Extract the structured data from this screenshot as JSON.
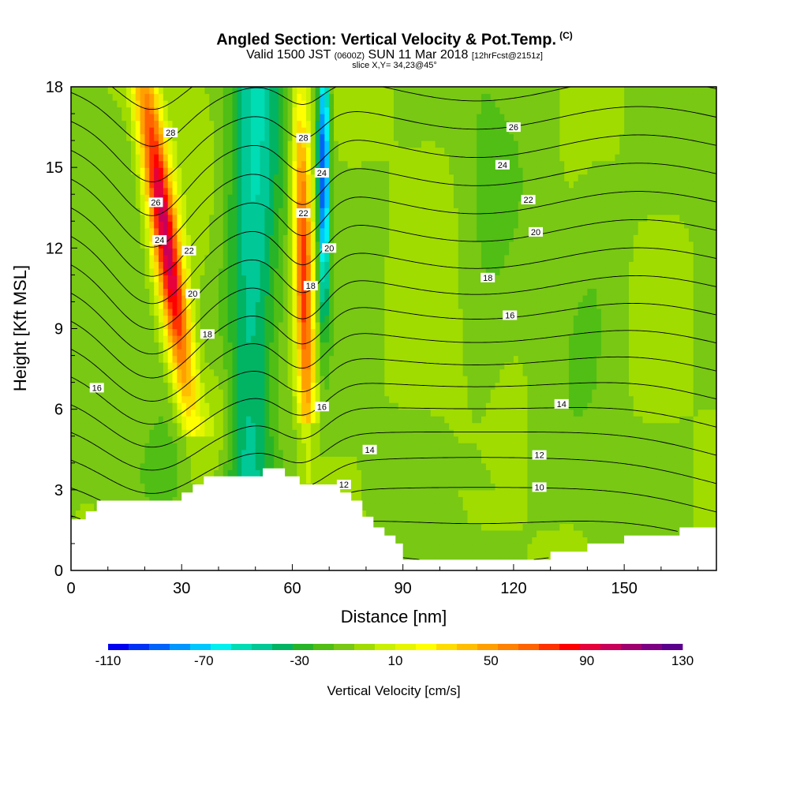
{
  "chart_data": {
    "type": "heatmap",
    "title": "Angled Section: Vertical Velocity & Pot.Temp.",
    "title_mark": "(C)",
    "subtitle_main_a": "Valid 1500 JST",
    "subtitle_small_a": "(0600Z)",
    "subtitle_main_b": "SUN 11 Mar 2018",
    "subtitle_small_b": "[12hrFcst@2151z]",
    "slice_label": "slice X,Y= 34,23@45°",
    "xlabel": "Distance [nm]",
    "ylabel": "Height [Kft MSL]",
    "xlim": [
      0,
      175
    ],
    "ylim": [
      0,
      18
    ],
    "xticks": [
      0,
      30,
      60,
      90,
      120,
      150
    ],
    "yticks": [
      0,
      3,
      6,
      9,
      12,
      15,
      18
    ],
    "colorbar": {
      "label": "Vertical Velocity [cm/s]",
      "min": -110,
      "max": 130,
      "step": 10,
      "tick_labels": [
        -110,
        -70,
        -30,
        10,
        50,
        90,
        130
      ],
      "colors": [
        "#0000f0",
        "#0032f5",
        "#0064fa",
        "#0096ff",
        "#00c8ff",
        "#00f0f0",
        "#00dcb4",
        "#00c896",
        "#00b464",
        "#28b428",
        "#50be14",
        "#78c814",
        "#a0dc00",
        "#c8f000",
        "#e6f500",
        "#ffff00",
        "#ffdc00",
        "#ffbe00",
        "#ffa000",
        "#ff8200",
        "#ff6400",
        "#ff3200",
        "#ff0000",
        "#e6003c",
        "#c8005a",
        "#a0006e",
        "#7d0082",
        "#5a008c"
      ]
    },
    "potential_temperature_labels": [
      {
        "value": 28,
        "x": 27,
        "y": 16.3
      },
      {
        "value": 26,
        "x": 23,
        "y": 13.7
      },
      {
        "value": 24,
        "x": 24,
        "y": 12.3
      },
      {
        "value": 22,
        "x": 32,
        "y": 11.9
      },
      {
        "value": 20,
        "x": 33,
        "y": 10.3
      },
      {
        "value": 18,
        "x": 37,
        "y": 8.8
      },
      {
        "value": 16,
        "x": 7,
        "y": 6.8
      },
      {
        "value": 28,
        "x": 63,
        "y": 16.1
      },
      {
        "value": 24,
        "x": 68,
        "y": 14.8
      },
      {
        "value": 22,
        "x": 63,
        "y": 13.3
      },
      {
        "value": 20,
        "x": 70,
        "y": 12.0
      },
      {
        "value": 18,
        "x": 65,
        "y": 10.6
      },
      {
        "value": 16,
        "x": 68,
        "y": 6.1
      },
      {
        "value": 12,
        "x": 74,
        "y": 3.2
      },
      {
        "value": 14,
        "x": 81,
        "y": 4.5
      },
      {
        "value": 26,
        "x": 120,
        "y": 16.5
      },
      {
        "value": 24,
        "x": 117,
        "y": 15.1
      },
      {
        "value": 22,
        "x": 124,
        "y": 13.8
      },
      {
        "value": 20,
        "x": 126,
        "y": 12.6
      },
      {
        "value": 18,
        "x": 113,
        "y": 10.9
      },
      {
        "value": 16,
        "x": 119,
        "y": 9.5
      },
      {
        "value": 14,
        "x": 133,
        "y": 6.2
      },
      {
        "value": 12,
        "x": 127,
        "y": 4.3
      },
      {
        "value": 10,
        "x": 127,
        "y": 3.1
      }
    ],
    "vertical_velocity_features": [
      {
        "kind": "updraft",
        "center_x_at_base": 38,
        "center_x_at_top": 20,
        "peak_cm_s": 130
      },
      {
        "kind": "downdraft",
        "center_x_at_base": 48,
        "center_x_at_top": 50,
        "peak_cm_s": -40
      },
      {
        "kind": "updraft",
        "center_x_at_base": 65,
        "center_x_at_top": 62,
        "peak_cm_s": 90
      },
      {
        "kind": "downdraft",
        "center_x_at_base": 68,
        "center_x_at_top": 69,
        "peak_cm_s": -90
      }
    ],
    "terrain_kft": [
      [
        0,
        1.9
      ],
      [
        4,
        2.2
      ],
      [
        7,
        2.6
      ],
      [
        30,
        2.9
      ],
      [
        33,
        3.2
      ],
      [
        36,
        3.5
      ],
      [
        52,
        3.8
      ],
      [
        58,
        3.5
      ],
      [
        62,
        3.2
      ],
      [
        70,
        3.2
      ],
      [
        73,
        2.9
      ],
      [
        76,
        2.6
      ],
      [
        79,
        2.0
      ],
      [
        82,
        1.6
      ],
      [
        85,
        1.3
      ],
      [
        88,
        1.0
      ],
      [
        90,
        0.4
      ],
      [
        128,
        0.4
      ],
      [
        130,
        0.7
      ],
      [
        140,
        1.0
      ],
      [
        150,
        1.3
      ],
      [
        158,
        1.3
      ],
      [
        165,
        1.6
      ],
      [
        175,
        1.6
      ]
    ]
  }
}
